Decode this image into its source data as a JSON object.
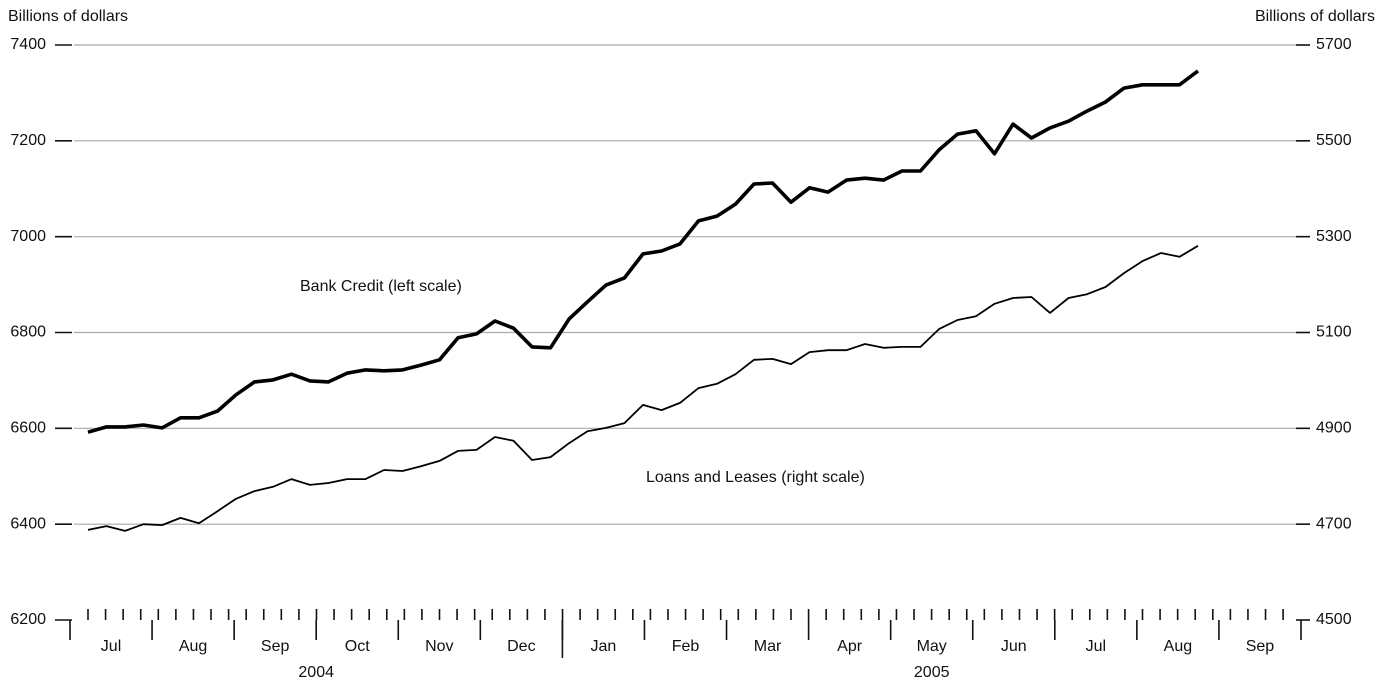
{
  "chart_data": {
    "type": "line",
    "y_axis_label": "Billions of dollars",
    "y2_axis_label": "Billions of dollars",
    "months": [
      "Jul",
      "Aug",
      "Sep",
      "Oct",
      "Nov",
      "Dec",
      "Jan",
      "Feb",
      "Mar",
      "Apr",
      "May",
      "Jun",
      "Jul",
      "Aug",
      "Sep"
    ],
    "years": [
      {
        "label": "2004",
        "months": 6
      },
      {
        "label": "2005",
        "months": 9
      }
    ],
    "ylim": [
      6200,
      7400
    ],
    "yticks": [
      6200,
      6400,
      6600,
      6800,
      7000,
      7200,
      7400
    ],
    "y2lim": [
      4500,
      5700
    ],
    "y2ticks": [
      4500,
      4700,
      4900,
      5100,
      5300,
      5500,
      5700
    ],
    "grid": true,
    "series": [
      {
        "name": "Bank Credit (left scale)",
        "color": "#000000",
        "axis": "y",
        "values": [
          6592,
          6603,
          6603,
          6607,
          6601,
          6622,
          6622,
          6636,
          6670,
          6697,
          6701,
          6713,
          6699,
          6697,
          6715,
          6722,
          6720,
          6722,
          6732,
          6743,
          6789,
          6797,
          6824,
          6809,
          6770,
          6768,
          6828,
          6864,
          6899,
          6914,
          6964,
          6970,
          6985,
          7033,
          7043,
          7068,
          7110,
          7112,
          7072,
          7102,
          7093,
          7118,
          7122,
          7118,
          7137,
          7137,
          7181,
          7214,
          7221,
          7173,
          7235,
          7206,
          7227,
          7241,
          7262,
          7281,
          7310,
          7317,
          7317,
          7317,
          7346
        ]
      },
      {
        "name": "Loans and Leases (right scale)",
        "color": "#000000",
        "axis": "y2",
        "values": [
          4688,
          4696,
          4686,
          4700,
          4698,
          4713,
          4702,
          4727,
          4753,
          4769,
          4778,
          4794,
          4782,
          4786,
          4794,
          4794,
          4813,
          4811,
          4821,
          4832,
          4853,
          4855,
          4882,
          4874,
          4834,
          4840,
          4869,
          4894,
          4901,
          4911,
          4949,
          4938,
          4953,
          4984,
          4993,
          5013,
          5043,
          5045,
          5034,
          5059,
          5063,
          5063,
          5076,
          5068,
          5070,
          5070,
          5107,
          5126,
          5134,
          5160,
          5172,
          5174,
          5141,
          5172,
          5180,
          5195,
          5224,
          5249,
          5266,
          5258,
          5281
        ]
      }
    ]
  }
}
